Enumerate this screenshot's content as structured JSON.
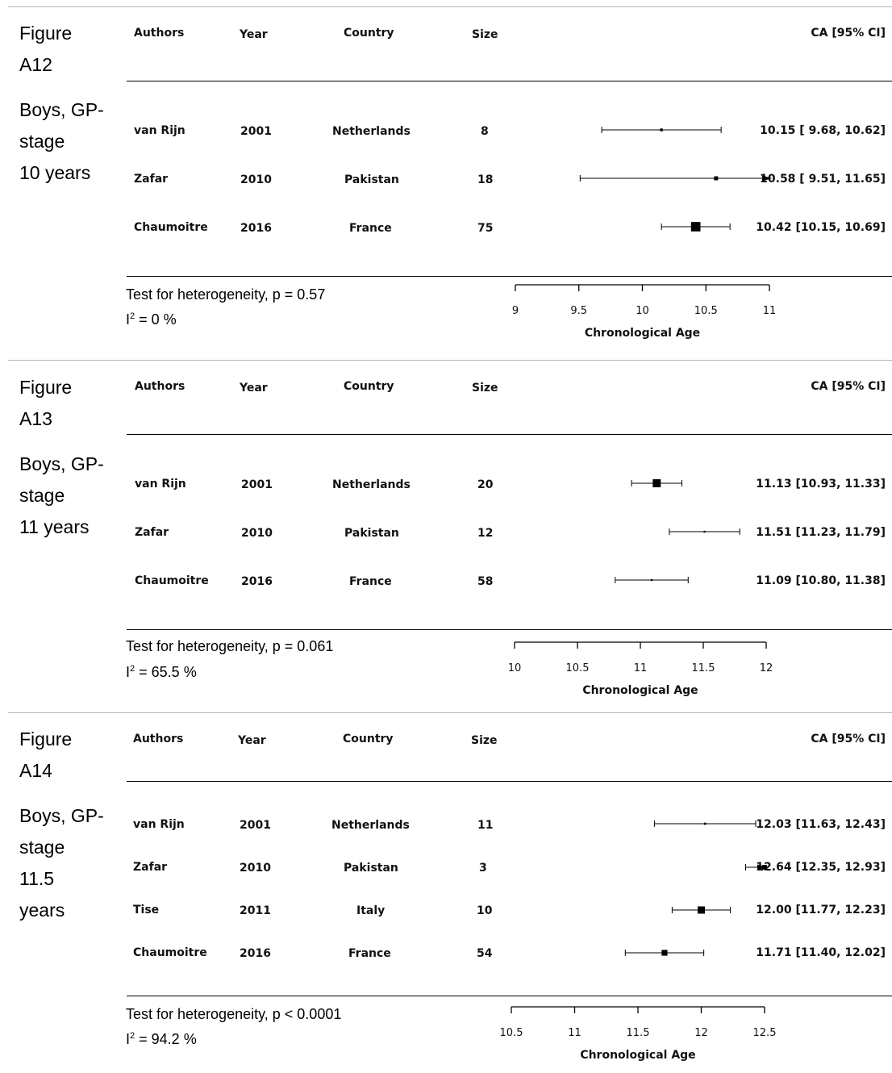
{
  "chart_data": [
    {
      "type": "forest",
      "figure_label": [
        "Figure",
        "A12"
      ],
      "subgroup_lines": [
        "Boys, GP-",
        "stage",
        "10 years"
      ],
      "columns": {
        "authors": "Authors",
        "year": "Year",
        "country": "Country",
        "size": "Size",
        "ci": "CA [95% CI]"
      },
      "rows": [
        {
          "author": "van Rijn",
          "year": "2001",
          "country": "Netherlands",
          "size": "8",
          "estimate": 10.15,
          "lower": 9.68,
          "upper": 10.62,
          "ci_text": "10.15 [ 9.68, 10.62]"
        },
        {
          "author": "Zafar",
          "year": "2010",
          "country": "Pakistan",
          "size": "18",
          "estimate": 10.58,
          "lower": 9.51,
          "upper": 11.65,
          "ci_text": "10.58 [ 9.51, 11.65]"
        },
        {
          "author": "Chaumoitre",
          "year": "2016",
          "country": "France",
          "size": "75",
          "estimate": 10.42,
          "lower": 10.15,
          "upper": 10.69,
          "ci_text": "10.42 [10.15, 10.69]"
        }
      ],
      "heterogeneity": "Test for heterogeneity, p = 0.57",
      "i2_prefix": "I",
      "i2_sup": "2",
      "i2_value": " = 0 %",
      "xlabel": "Chronological Age",
      "xlim": [
        9,
        11
      ],
      "xticks": [
        "9",
        "9.5",
        "10",
        "10.5",
        "11"
      ]
    },
    {
      "type": "forest",
      "figure_label": [
        "Figure",
        "A13"
      ],
      "subgroup_lines": [
        "Boys, GP-",
        "stage",
        "11 years"
      ],
      "columns": {
        "authors": "Authors",
        "year": "Year",
        "country": "Country",
        "size": "Size",
        "ci": "CA [95% CI]"
      },
      "rows": [
        {
          "author": "van Rijn",
          "year": "2001",
          "country": "Netherlands",
          "size": "20",
          "estimate": 11.13,
          "lower": 10.93,
          "upper": 11.33,
          "ci_text": "11.13 [10.93, 11.33]"
        },
        {
          "author": "Zafar",
          "year": "2010",
          "country": "Pakistan",
          "size": "12",
          "estimate": 11.51,
          "lower": 11.23,
          "upper": 11.79,
          "ci_text": "11.51 [11.23, 11.79]"
        },
        {
          "author": "Chaumoitre",
          "year": "2016",
          "country": "France",
          "size": "58",
          "estimate": 11.09,
          "lower": 10.8,
          "upper": 11.38,
          "ci_text": "11.09 [10.80, 11.38]"
        }
      ],
      "heterogeneity": "Test for heterogeneity, p = 0.061",
      "i2_prefix": "I",
      "i2_sup": "2",
      "i2_value": " = 65.5 %",
      "xlabel": "Chronological Age",
      "xlim": [
        10,
        12
      ],
      "xticks": [
        "10",
        "10.5",
        "11",
        "11.5",
        "12"
      ]
    },
    {
      "type": "forest",
      "figure_label": [
        "Figure",
        "A14"
      ],
      "subgroup_lines": [
        "Boys, GP-",
        "stage",
        "11.5",
        "years"
      ],
      "columns": {
        "authors": "Authors",
        "year": "Year",
        "country": "Country",
        "size": "Size",
        "ci": "CA [95% CI]"
      },
      "rows": [
        {
          "author": "van Rijn",
          "year": "2001",
          "country": "Netherlands",
          "size": "11",
          "estimate": 12.03,
          "lower": 11.63,
          "upper": 12.43,
          "ci_text": "12.03 [11.63, 12.43]"
        },
        {
          "author": "Zafar",
          "year": "2010",
          "country": "Pakistan",
          "size": "3",
          "estimate": 12.64,
          "lower": 12.35,
          "upper": 12.93,
          "ci_text": "12.64 [12.35, 12.93]"
        },
        {
          "author": "Tise",
          "year": "2011",
          "country": "Italy",
          "size": "10",
          "estimate": 12.0,
          "lower": 11.77,
          "upper": 12.23,
          "ci_text": "12.00 [11.77, 12.23]"
        },
        {
          "author": "Chaumoitre",
          "year": "2016",
          "country": "France",
          "size": "54",
          "estimate": 11.71,
          "lower": 11.4,
          "upper": 12.02,
          "ci_text": "11.71 [11.40, 12.02]"
        }
      ],
      "heterogeneity": "Test for heterogeneity, p < 0.0001",
      "i2_prefix": "I",
      "i2_sup": "2",
      "i2_value": " = 94.2 %",
      "xlabel": "Chronological Age",
      "xlim": [
        10.5,
        12.5
      ],
      "xticks": [
        "10.5",
        "11",
        "11.5",
        "12",
        "12.5"
      ]
    }
  ]
}
